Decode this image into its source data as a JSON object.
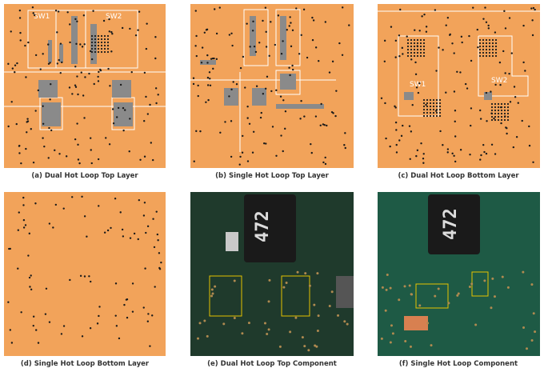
{
  "panels": [
    {
      "caption": "(a) Dual Hot Loop Top Layer",
      "labels": [
        "SW1",
        "SW2"
      ]
    },
    {
      "caption": "(b) Single Hot Loop Top Layer"
    },
    {
      "caption": "(c) Dual Hot Loop Bottom Layer",
      "labels": [
        "SW1",
        "SW2"
      ]
    },
    {
      "caption": "(d) Single Hot Loop Bottom Layer"
    },
    {
      "caption": "(e) Dual Hot Loop Top Component",
      "labels": [
        "472"
      ]
    },
    {
      "caption": "(f) Single Hot Loop Component",
      "labels": [
        "472"
      ]
    }
  ]
}
